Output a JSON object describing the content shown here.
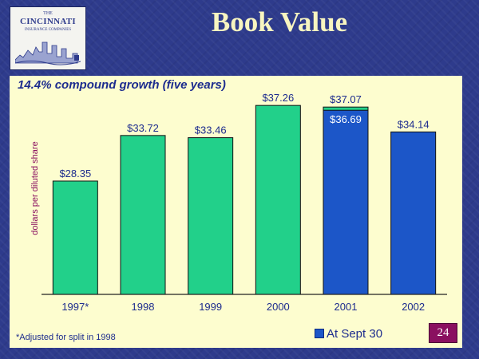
{
  "slide": {
    "title": "Book Value",
    "subtitle": "14.4% compound growth (five years)",
    "footnote": "*Adjusted for split in 1998",
    "page_number": "24"
  },
  "logo": {
    "line1": "THE",
    "line2": "CINCINNATI",
    "line3": "INSURANCE COMPANIES"
  },
  "colors": {
    "green_bar": "#22d08a",
    "blue_bar": "#1c56c8",
    "panel": "#fdfdcf",
    "text": "#1d2c8e",
    "ylabel": "#8a1060"
  },
  "chart_data": {
    "type": "bar",
    "ylabel": "dollars per diluted share",
    "xlabel": "",
    "ylim": [
      15,
      40
    ],
    "categories": [
      "1997*",
      "1998",
      "1999",
      "2000",
      "2001",
      "2002"
    ],
    "series": [
      {
        "values": [
          28.35,
          33.72,
          33.46,
          37.26,
          37.07,
          null
        ],
        "color": "#22d08a",
        "labels": [
          "$28.35",
          "$33.72",
          "$33.46",
          "$37.26",
          "$37.07",
          null
        ]
      },
      {
        "name": "At Sept 30",
        "values": [
          null,
          null,
          null,
          null,
          36.69,
          34.14
        ],
        "color": "#1c56c8",
        "labels": [
          null,
          null,
          null,
          null,
          "$36.69",
          "$34.14"
        ]
      }
    ],
    "legend": "bottom-right",
    "grid": false
  }
}
